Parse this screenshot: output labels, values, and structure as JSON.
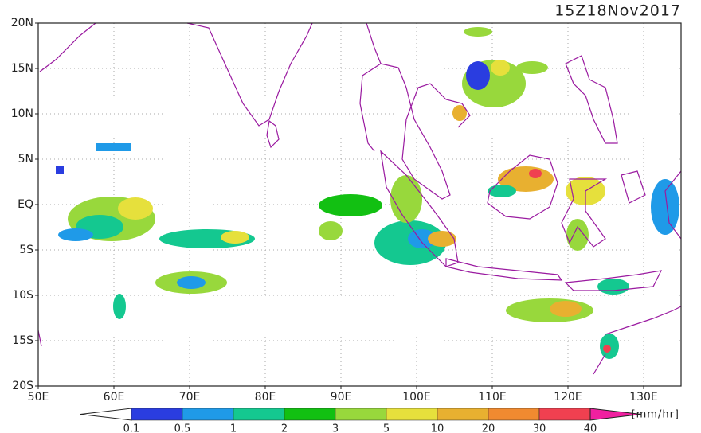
{
  "map": {
    "title": "15Z18Nov2017",
    "lon_labels": [
      "50E",
      "60E",
      "70E",
      "80E",
      "90E",
      "100E",
      "110E",
      "120E",
      "130E"
    ],
    "lat_labels": [
      "20N",
      "15N",
      "10N",
      "5N",
      "EQ",
      "5S",
      "10S",
      "15S",
      "20S"
    ],
    "colorbar": {
      "levels": [
        0.1,
        0.5,
        1,
        2,
        3,
        5,
        10,
        20,
        30,
        40
      ],
      "colors": [
        "#ffffff",
        "#2a3de0",
        "#1f9ae8",
        "#14c890",
        "#12c012",
        "#98d83c",
        "#e6e03c",
        "#e8b030",
        "#f08a30",
        "#f04050",
        "#f020a0"
      ],
      "unit": "[mm/hr]"
    }
  }
}
